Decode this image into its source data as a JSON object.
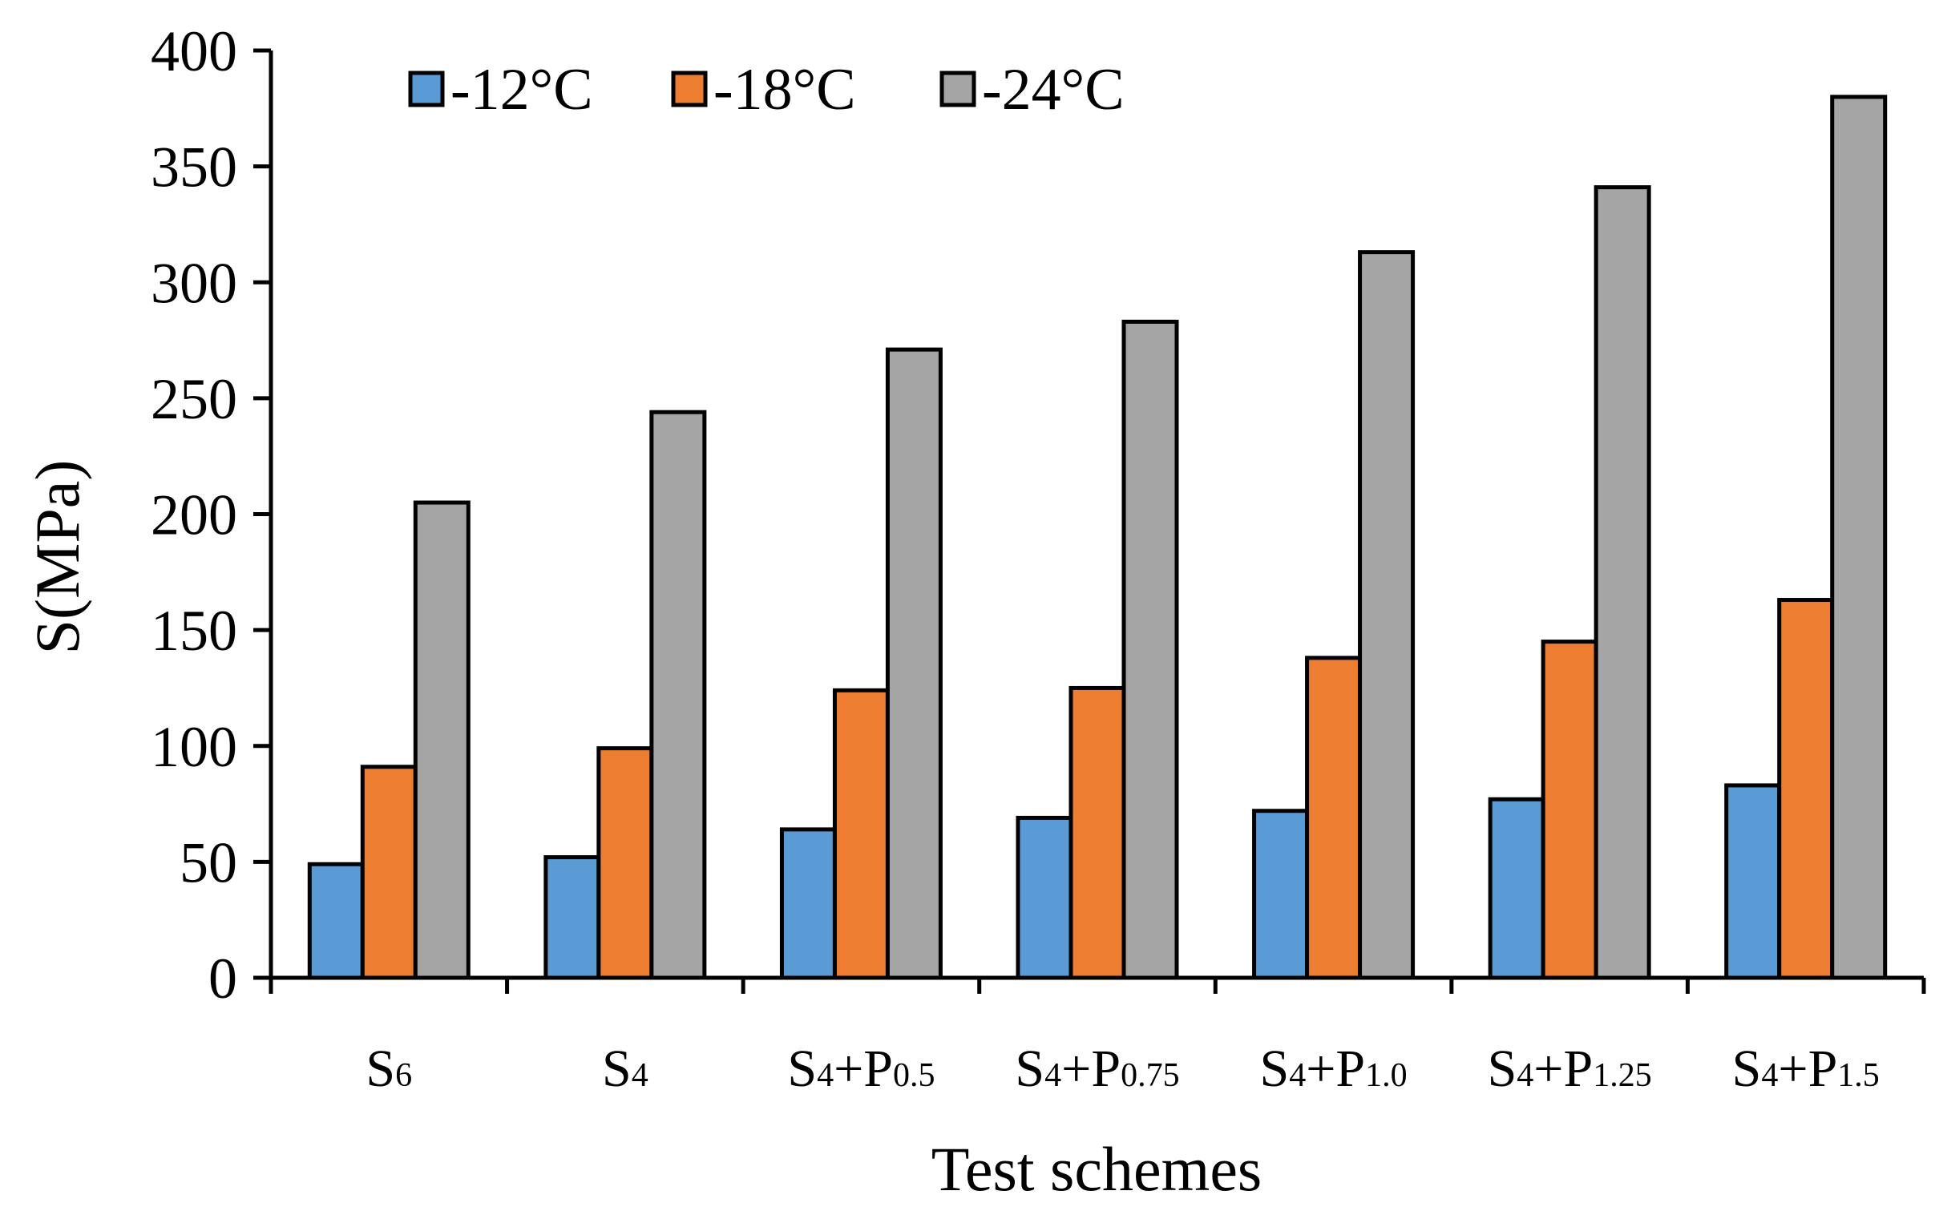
{
  "chart_data": {
    "type": "bar",
    "title": "",
    "xlabel": "Test schemes",
    "ylabel": "S(MPa)",
    "ylim": [
      0,
      400
    ],
    "yticks": [
      0,
      50,
      100,
      150,
      200,
      250,
      300,
      350,
      400
    ],
    "grid": false,
    "legend_position": "top-left",
    "categories": [
      {
        "label": "S6",
        "base": "S",
        "sub1": "6",
        "mid": "",
        "sub2": ""
      },
      {
        "label": "S4",
        "base": "S",
        "sub1": "4",
        "mid": "",
        "sub2": ""
      },
      {
        "label": "S4+P0.5",
        "base": "S",
        "sub1": "4",
        "mid": "+P",
        "sub2": "0.5"
      },
      {
        "label": "S4+P0.75",
        "base": "S",
        "sub1": "4",
        "mid": "+P",
        "sub2": "0.75"
      },
      {
        "label": "S4+P1.0",
        "base": "S",
        "sub1": "4",
        "mid": "+P",
        "sub2": "1.0"
      },
      {
        "label": "S4+P1.25",
        "base": "S",
        "sub1": "4",
        "mid": "+P",
        "sub2": "1.25"
      },
      {
        "label": "S4+P1.5",
        "base": "S",
        "sub1": "4",
        "mid": "+P",
        "sub2": "1.5"
      }
    ],
    "series": [
      {
        "name": "-12°C",
        "color": "#5b9bd5",
        "values": [
          49,
          52,
          64,
          69,
          72,
          77,
          83
        ]
      },
      {
        "name": "-18°C",
        "color": "#ed7d31",
        "values": [
          91,
          99,
          124,
          125,
          138,
          145,
          163
        ]
      },
      {
        "name": "-24°C",
        "color": "#a5a5a5",
        "values": [
          205,
          244,
          271,
          283,
          313,
          341,
          380
        ]
      }
    ]
  }
}
